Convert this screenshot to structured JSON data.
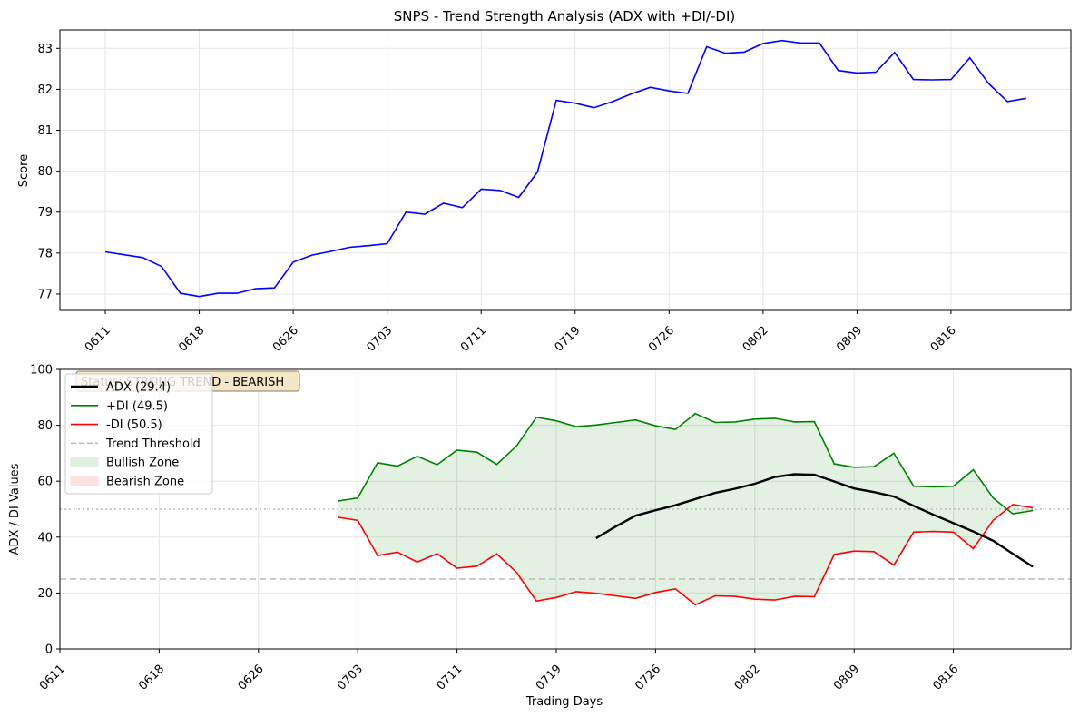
{
  "chart_data": [
    {
      "type": "line",
      "title": "SNPS - Trend Strength Analysis (ADX with +DI/-DI)",
      "xlabel": "",
      "ylabel": "Score",
      "ylim": [
        76.6,
        83.45
      ],
      "yticks": [
        77,
        78,
        79,
        80,
        81,
        82,
        83
      ],
      "xtick_labels": [
        "0611",
        "0618",
        "0626",
        "0703",
        "0711",
        "0719",
        "0726",
        "0802",
        "0809",
        "0816"
      ],
      "grid": true,
      "series": [
        {
          "color": "#0000ff",
          "values": [
            78.03,
            77.96,
            77.89,
            77.67,
            77.02,
            76.94,
            77.02,
            77.02,
            77.13,
            77.15,
            77.78,
            77.95,
            78.04,
            78.14,
            78.18,
            78.23,
            79.0,
            78.95,
            79.22,
            79.11,
            79.56,
            79.53,
            79.36,
            79.98,
            81.73,
            81.66,
            81.55,
            81.7,
            81.89,
            82.05,
            81.96,
            81.9,
            83.04,
            82.88,
            82.91,
            83.12,
            83.19,
            83.13,
            83.13,
            82.46,
            82.4,
            82.42,
            82.9,
            82.24,
            82.23,
            82.24,
            82.77,
            82.14,
            81.7,
            81.78
          ]
        }
      ]
    },
    {
      "type": "line",
      "title": "",
      "xlabel": "Trading Days",
      "ylabel": "ADX / DI Values",
      "ylim": [
        0,
        100
      ],
      "yticks": [
        0,
        20,
        40,
        60,
        80,
        100
      ],
      "xtick_labels": [
        "0611",
        "0618",
        "0626",
        "0703",
        "0711",
        "0719",
        "0726",
        "0802",
        "0809",
        "0816"
      ],
      "grid": true,
      "legend_position": "upper-left",
      "status_text": "Status: STRONG TREND - BEARISH",
      "hlines": [
        {
          "value": 25,
          "style": "dashed",
          "color": "#bbbbbb"
        },
        {
          "value": 50,
          "style": "dotted",
          "color": "#bbbbbb"
        }
      ],
      "series": [
        {
          "name": "ADX (29.4)",
          "color": "#000000",
          "start_index": 27,
          "values": [
            39.6,
            43.8,
            47.7,
            49.6,
            51.4,
            53.6,
            55.8,
            57.3,
            59.1,
            61.5,
            62.5,
            62.3,
            59.9,
            57.4,
            56.1,
            54.5,
            51.2,
            48.0,
            45.0,
            42.0,
            38.7,
            34.0,
            29.4
          ]
        },
        {
          "name": "+DI (49.5)",
          "color": "#008000",
          "start_index": 14,
          "values": [
            52.9,
            54.0,
            66.6,
            65.4,
            68.9,
            65.9,
            71.1,
            70.4,
            66.0,
            72.6,
            82.9,
            81.6,
            79.5,
            80.1,
            81.0,
            81.9,
            79.8,
            78.5,
            84.2,
            81.0,
            81.2,
            82.2,
            82.5,
            81.2,
            81.3,
            66.2,
            65.0,
            65.2,
            70.0,
            58.2,
            58.0,
            58.2,
            64.1,
            54.0,
            48.3,
            49.5
          ]
        },
        {
          "name": "-DI (50.5)",
          "color": "#ff0000",
          "start_index": 14,
          "values": [
            47.1,
            46.0,
            33.4,
            34.6,
            31.1,
            34.1,
            28.9,
            29.6,
            34.0,
            27.4,
            17.1,
            18.4,
            20.5,
            19.9,
            19.0,
            18.1,
            20.2,
            21.5,
            15.8,
            19.0,
            18.8,
            17.8,
            17.5,
            18.8,
            18.7,
            33.8,
            35.0,
            34.8,
            30.0,
            41.8,
            42.0,
            41.8,
            35.9,
            46.0,
            51.7,
            50.5
          ]
        }
      ],
      "legend": [
        {
          "label": "ADX (29.4)",
          "kind": "line",
          "color": "#000000"
        },
        {
          "label": "+DI (49.5)",
          "kind": "line",
          "color": "#008000"
        },
        {
          "label": "-DI (50.5)",
          "kind": "line",
          "color": "#ff0000"
        },
        {
          "label": "Trend Threshold",
          "kind": "dash",
          "color": "#bbbbbb"
        },
        {
          "label": "Bullish Zone",
          "kind": "patch",
          "color": "#e1efe1"
        },
        {
          "label": "Bearish Zone",
          "kind": "patch",
          "color": "#fde2e2"
        }
      ]
    }
  ]
}
